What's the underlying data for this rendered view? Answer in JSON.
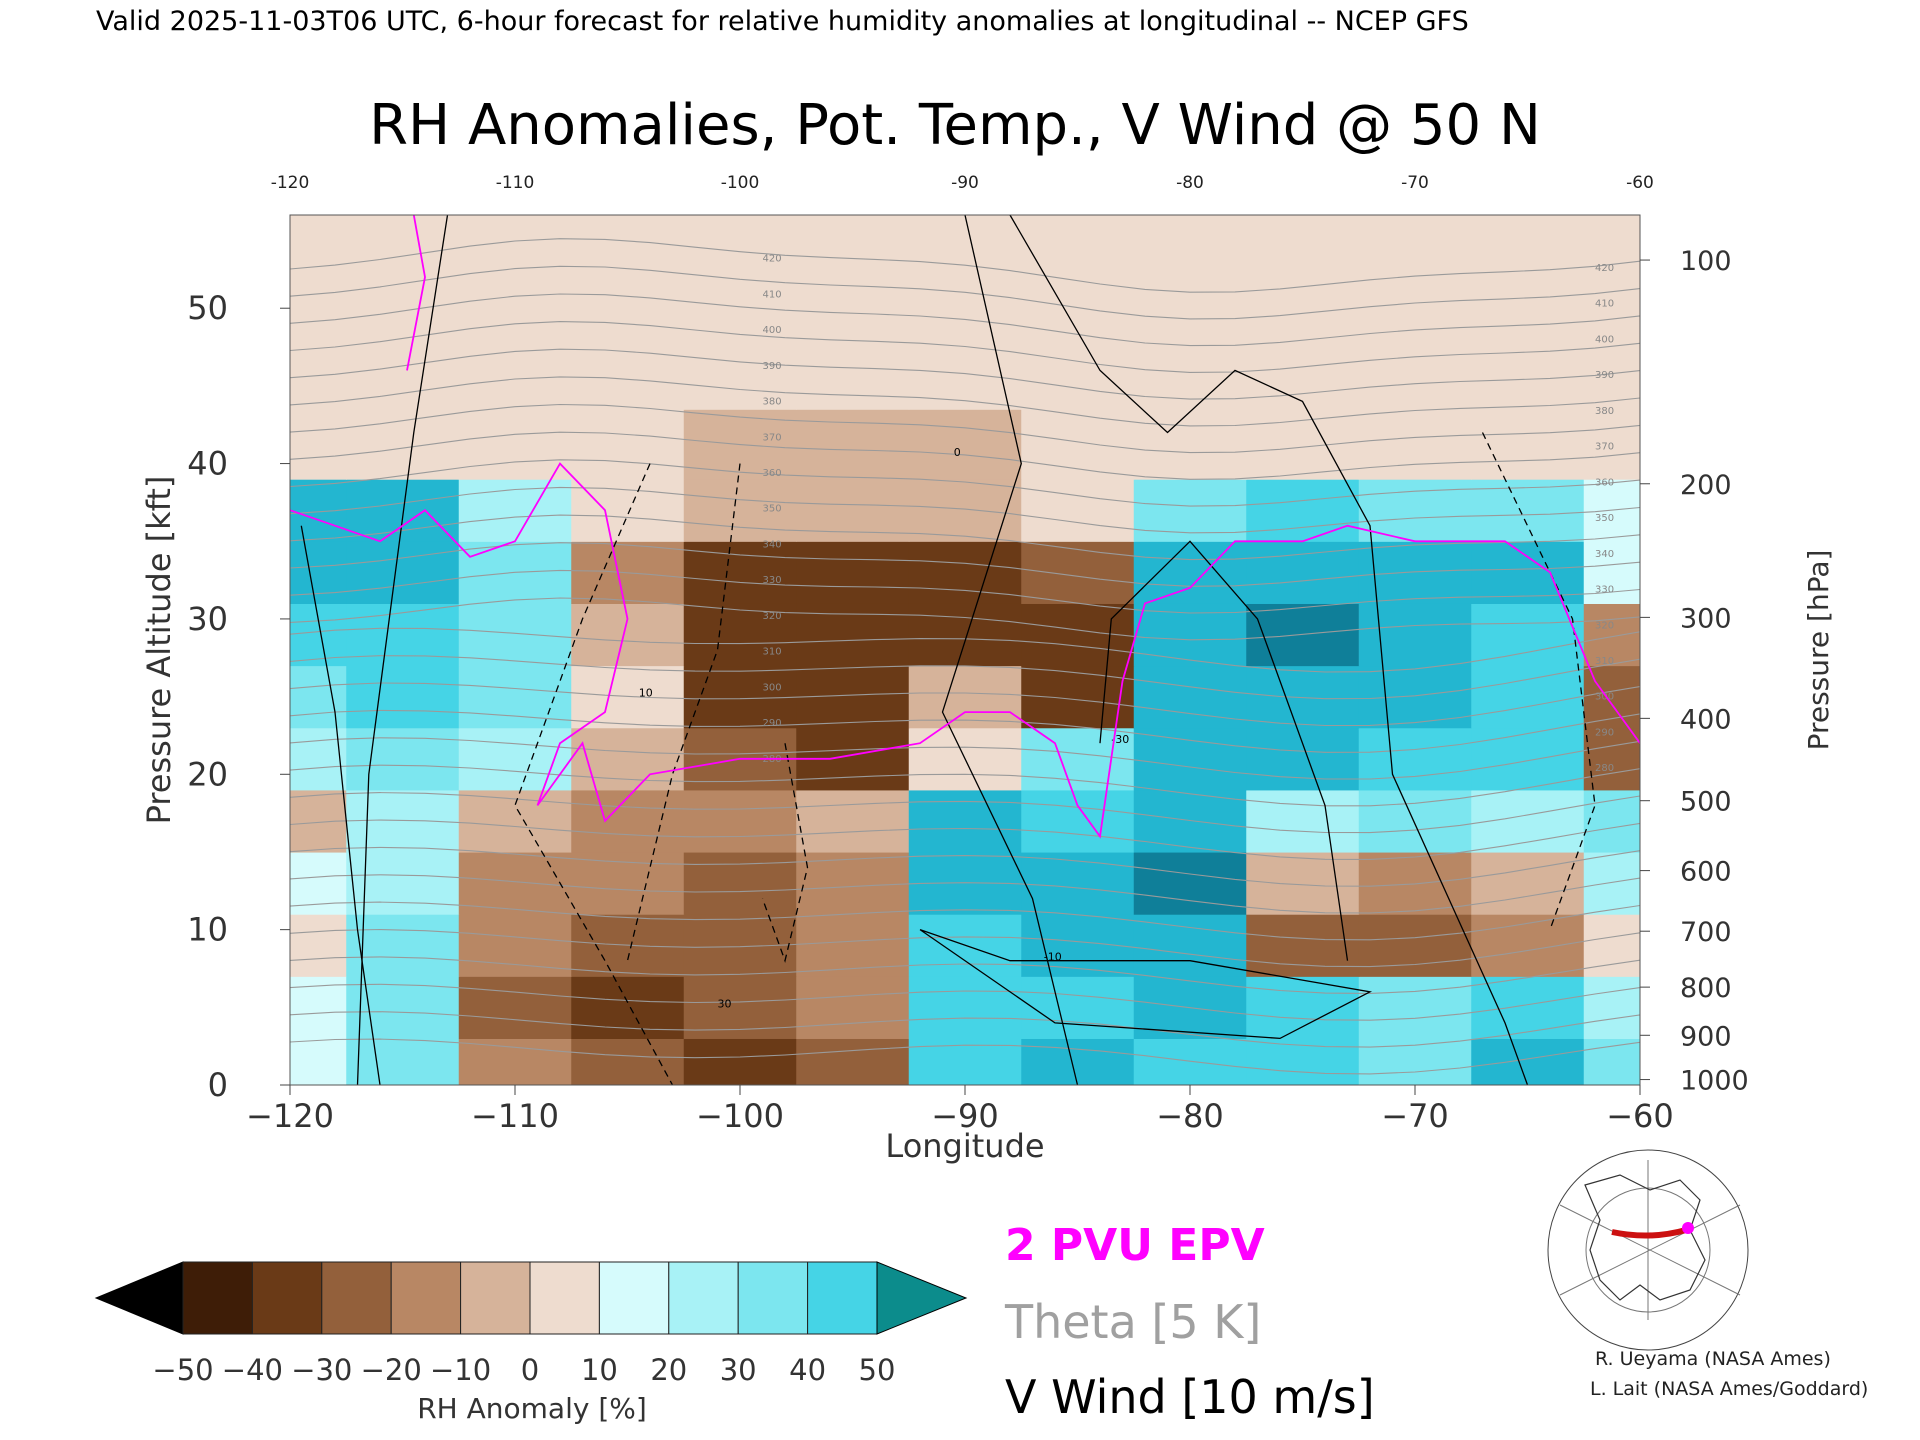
{
  "header": "Valid 2025-11-03T06 UTC, 6-hour forecast for relative humidity anomalies at longitudinal -- NCEP GFS",
  "chart_data": {
    "type": "heatmap",
    "title": "RH Anomalies, Pot. Temp., V Wind @ 50 N",
    "xlabel": "Longitude",
    "ylabel_left": "Pressure Altitude [kft]",
    "ylabel_right": "Pressure [hPa]",
    "xlim": [
      -120,
      -60
    ],
    "ylim": [
      0,
      56
    ],
    "x_ticks": [
      -120,
      -110,
      -100,
      -90,
      -80,
      -70,
      -60
    ],
    "x_tick_labels": [
      "−120",
      "−110",
      "−100",
      "−90",
      "−80",
      "−70",
      "−60"
    ],
    "top_ticks": [
      -120,
      -110,
      -100,
      -90,
      -80,
      -70,
      -60
    ],
    "top_tick_labels": [
      "-120",
      "-110",
      "-100",
      "-90",
      "-80",
      "-70",
      "-60"
    ],
    "y_ticks": [
      0,
      10,
      20,
      30,
      40,
      50
    ],
    "y_tick_labels": [
      "0",
      "10",
      "20",
      "30",
      "40",
      "50"
    ],
    "pressure_ticks": [
      {
        "alt": 0.35,
        "label": "1000"
      },
      {
        "alt": 3.2,
        "label": "900"
      },
      {
        "alt": 6.3,
        "label": "800"
      },
      {
        "alt": 9.9,
        "label": "700"
      },
      {
        "alt": 13.8,
        "label": "600"
      },
      {
        "alt": 18.3,
        "label": "500"
      },
      {
        "alt": 23.6,
        "label": "400"
      },
      {
        "alt": 30.1,
        "label": "300"
      },
      {
        "alt": 38.7,
        "label": "200"
      },
      {
        "alt": 53.1,
        "label": "100"
      }
    ],
    "x_lon": [
      -120,
      -115,
      -110,
      -105,
      -100,
      -95,
      -90,
      -85,
      -80,
      -75,
      -70,
      -65,
      -60
    ],
    "y_alt": [
      1,
      5,
      9,
      13,
      17,
      21,
      25,
      29,
      33,
      37,
      41,
      46,
      52
    ],
    "rh_anomaly": [
      [
        5,
        20,
        -30,
        -40,
        -45,
        -35,
        30,
        40,
        30,
        35,
        25,
        40,
        20
      ],
      [
        5,
        25,
        -35,
        -45,
        -40,
        -30,
        35,
        30,
        45,
        35,
        20,
        30,
        10
      ],
      [
        -10,
        20,
        -30,
        -35,
        -40,
        -30,
        35,
        40,
        45,
        -35,
        -40,
        -30,
        -10
      ],
      [
        5,
        15,
        -25,
        -25,
        -35,
        -25,
        45,
        45,
        50,
        -20,
        -30,
        -20,
        15
      ],
      [
        -20,
        10,
        -20,
        -30,
        -30,
        -20,
        40,
        30,
        40,
        10,
        20,
        15,
        20
      ],
      [
        10,
        20,
        15,
        -20,
        -40,
        -45,
        -10,
        25,
        45,
        40,
        35,
        30,
        -40
      ],
      [
        25,
        30,
        20,
        -10,
        -50,
        -45,
        -20,
        -50,
        45,
        45,
        40,
        35,
        -35
      ],
      [
        30,
        35,
        25,
        -20,
        -50,
        -50,
        -45,
        -50,
        45,
        50,
        45,
        35,
        -30
      ],
      [
        40,
        45,
        20,
        -25,
        -50,
        -45,
        -45,
        -40,
        40,
        45,
        45,
        40,
        5
      ],
      [
        45,
        45,
        10,
        -5,
        -20,
        -20,
        -15,
        -10,
        20,
        30,
        25,
        25,
        5
      ],
      [
        -10,
        -5,
        -10,
        -8,
        -15,
        -15,
        -15,
        -10,
        -10,
        -10,
        -5,
        -5,
        -5
      ],
      [
        -5,
        -5,
        -5,
        -5,
        -5,
        -5,
        -5,
        -3,
        -3,
        -3,
        -3,
        -3,
        -3
      ],
      [
        -2,
        -2,
        -2,
        -2,
        -2,
        -2,
        -2,
        -2,
        -2,
        -2,
        -2,
        -2,
        -2
      ]
    ],
    "theta_labels": [
      "420",
      "410",
      "400",
      "390",
      "380",
      "370",
      "360",
      "350",
      "340",
      "330",
      "320",
      "310",
      "300",
      "290",
      "280"
    ],
    "vwind_labels": [
      "10",
      "0",
      "-10",
      "30",
      "-30"
    ],
    "colorbar": {
      "ticks": [
        -50,
        -40,
        -30,
        -20,
        -10,
        0,
        10,
        20,
        30,
        40,
        50
      ],
      "tick_labels": [
        "−50",
        "−40",
        "−30",
        "−20",
        "−10",
        "0",
        "10",
        "20",
        "30",
        "40",
        "50"
      ],
      "label": "RH Anomaly [%]",
      "colors": [
        "#000000",
        "#3e1d07",
        "#6a3a17",
        "#93603b",
        "#b88764",
        "#d6b39a",
        "#eedccf",
        "#d6fbfc",
        "#a8f2f6",
        "#7ce6ef",
        "#45d4e6",
        "#23b6d0",
        "#0f7f99",
        "#0c8c8c"
      ]
    },
    "legend": [
      {
        "text": "2 PVU EPV",
        "color": "#ff00ff"
      },
      {
        "text": "Theta [5 K]",
        "color": "#a0a0a0"
      },
      {
        "text": "V Wind [10 m/s]",
        "color": "#000000"
      }
    ],
    "grid": false
  },
  "credits": [
    "R. Ueyama (NASA Ames)",
    "L. Lait (NASA Ames/Goddard)"
  ]
}
